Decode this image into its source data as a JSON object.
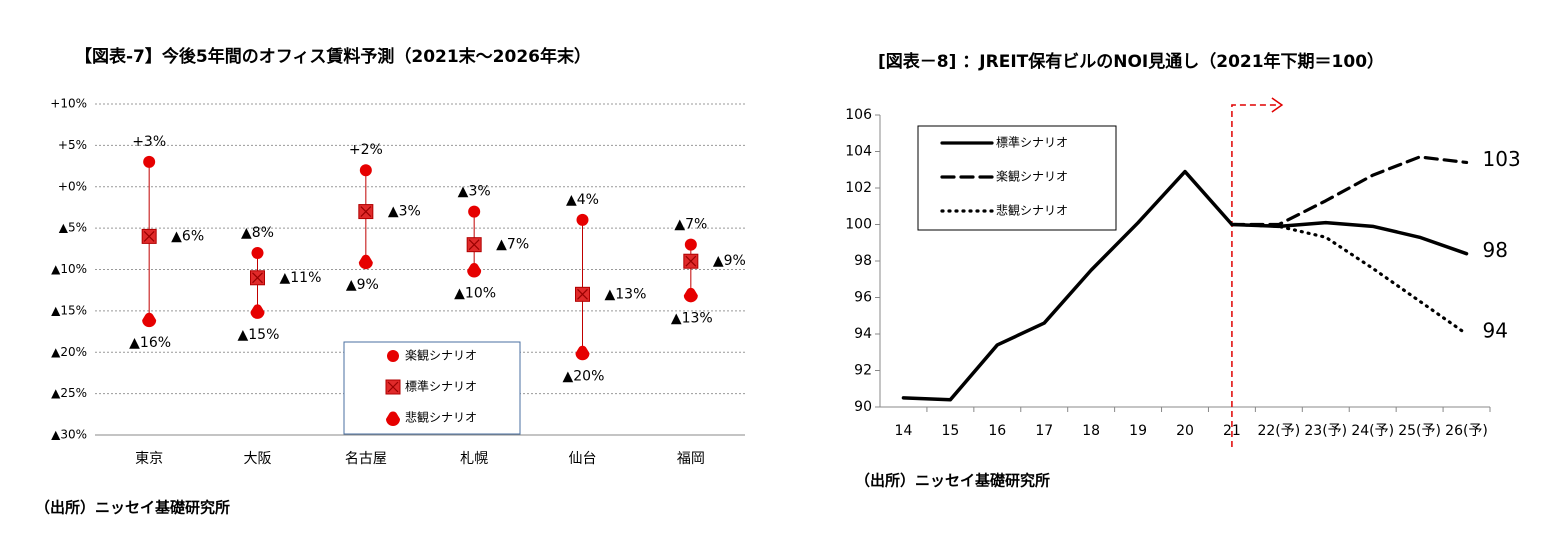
{
  "chart_data": [
    {
      "type": "dot",
      "title": "【図表-7】今後5年間のオフィス賃料予測（2021末～2026年末）",
      "source": "（出所）ニッセイ基礎研究所",
      "categories": [
        "東京",
        "大阪",
        "名古屋",
        "札幌",
        "仙台",
        "福岡"
      ],
      "ylim": [
        -30,
        10
      ],
      "yticks": [
        {
          "value": -30,
          "label": "▲30%"
        },
        {
          "value": -25,
          "label": "▲25%"
        },
        {
          "value": -20,
          "label": "▲20%"
        },
        {
          "value": -15,
          "label": "▲15%"
        },
        {
          "value": -10,
          "label": "▲10%"
        },
        {
          "value": -5,
          "label": "▲5%"
        },
        {
          "value": 0,
          "label": "+0%"
        },
        {
          "value": 5,
          "label": "+5%"
        },
        {
          "value": 10,
          "label": "+10%"
        }
      ],
      "grid": true,
      "series": [
        {
          "name": "楽観シナリオ",
          "color": "#e60000",
          "marker": "circle",
          "values": [
            3,
            -8,
            2,
            -3,
            -4,
            -7
          ],
          "value_labels": [
            "+3%",
            "▲8%",
            "+2%",
            "▲3%",
            "▲4%",
            "▲7%"
          ]
        },
        {
          "name": "標準シナリオ",
          "color": "#e02a2a",
          "marker": "square",
          "values": [
            -6,
            -11,
            -3,
            -7,
            -13,
            -9
          ],
          "value_labels": [
            "▲6%",
            "▲11%",
            "▲3%",
            "▲7%",
            "▲13%",
            "▲9%"
          ]
        },
        {
          "name": "悲観シナリオ",
          "color": "#e60000",
          "marker": "half-circle",
          "values": [
            -16,
            -15,
            -9,
            -10,
            -20,
            -13
          ],
          "value_labels": [
            "▲16%",
            "▲15%",
            "▲9%",
            "▲10%",
            "▲20%",
            "▲13%"
          ]
        }
      ]
    },
    {
      "type": "line",
      "title": "[図表－8] ：JREIT保有ビルのNOI見通し（2021年下期＝100）",
      "source": "（出所）ニッセイ基礎研究所",
      "categories": [
        "14",
        "15",
        "16",
        "17",
        "18",
        "19",
        "20",
        "21",
        "22(予)",
        "23(予)",
        "24(予)",
        "25(予)",
        "26(予)"
      ],
      "ylim": [
        90,
        106
      ],
      "yticks": [
        90,
        92,
        94,
        96,
        98,
        100,
        102,
        104,
        106
      ],
      "grid": false,
      "legend": "upper-left",
      "series": [
        {
          "name": "標準シナリオ",
          "color": "#000000",
          "dash": "solid",
          "values": [
            90.5,
            90.4,
            93.4,
            94.6,
            97.5,
            100.1,
            102.9,
            100,
            99.9,
            100.1,
            99.9,
            99.3,
            98.4
          ],
          "value_labels": [
            null,
            null,
            null,
            null,
            null,
            null,
            null,
            null,
            null,
            null,
            null,
            null,
            "98"
          ]
        },
        {
          "name": "楽観シナリオ",
          "color": "#000000",
          "dash": "dashed",
          "values": [
            null,
            null,
            null,
            null,
            null,
            null,
            null,
            100,
            100,
            101.3,
            102.7,
            103.7,
            103.4
          ],
          "value_labels": [
            null,
            null,
            null,
            null,
            null,
            null,
            null,
            null,
            null,
            null,
            null,
            null,
            "103"
          ]
        },
        {
          "name": "悲観シナリオ",
          "color": "#000000",
          "dash": "dotted",
          "values": [
            null,
            null,
            null,
            null,
            null,
            null,
            null,
            100,
            99.9,
            99.3,
            97.6,
            95.8,
            94.0
          ],
          "value_labels": [
            null,
            null,
            null,
            null,
            null,
            null,
            null,
            null,
            null,
            null,
            null,
            null,
            "94"
          ]
        }
      ]
    }
  ]
}
